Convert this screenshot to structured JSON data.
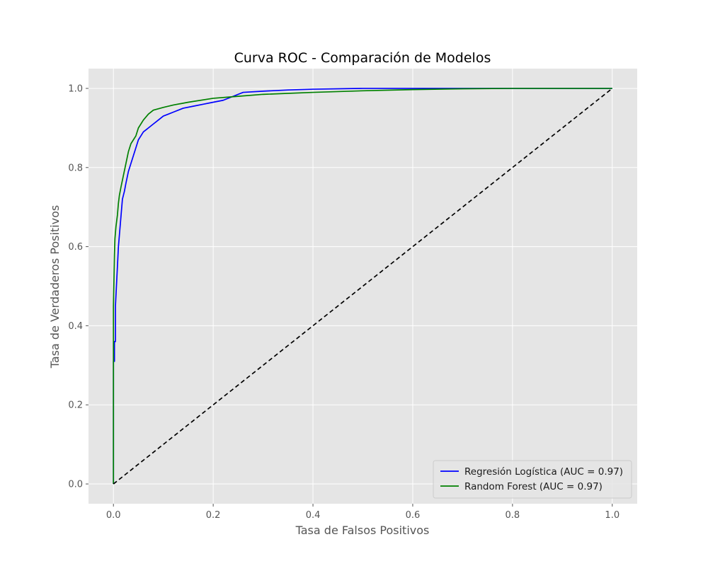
{
  "chart_data": {
    "type": "line",
    "title": "Curva ROC - Comparación de Modelos",
    "xlabel": "Tasa de Falsos Positivos",
    "ylabel": "Tasa de Verdaderos Positivos",
    "xlim": [
      -0.05,
      1.05
    ],
    "ylim": [
      -0.05,
      1.05
    ],
    "xticks": [
      0.0,
      0.2,
      0.4,
      0.6,
      0.8,
      1.0
    ],
    "xtick_labels": [
      "0.0",
      "0.2",
      "0.4",
      "0.6",
      "0.8",
      "1.0"
    ],
    "yticks": [
      0.0,
      0.2,
      0.4,
      0.6,
      0.8,
      1.0
    ],
    "ytick_labels": [
      "0.0",
      "0.2",
      "0.4",
      "0.6",
      "0.8",
      "1.0"
    ],
    "grid": true,
    "legend_position": "lower right",
    "colors": {
      "background": "#e5e5e5",
      "grid": "#ffffff",
      "text": "#555555"
    },
    "series": [
      {
        "name": "Regresión Logística (AUC = 0.97)",
        "color": "#0000ff",
        "x": [
          0.0,
          0.0,
          0.002,
          0.002,
          0.004,
          0.004,
          0.006,
          0.008,
          0.01,
          0.012,
          0.014,
          0.016,
          0.018,
          0.02,
          0.022,
          0.025,
          0.03,
          0.035,
          0.04,
          0.045,
          0.05,
          0.055,
          0.06,
          0.065,
          0.07,
          0.08,
          0.09,
          0.1,
          0.11,
          0.12,
          0.14,
          0.16,
          0.18,
          0.2,
          0.22,
          0.24,
          0.26,
          0.3,
          0.35,
          0.4,
          0.5,
          0.6,
          0.7,
          0.8,
          1.0
        ],
        "y": [
          0.0,
          0.31,
          0.31,
          0.36,
          0.36,
          0.45,
          0.5,
          0.55,
          0.6,
          0.63,
          0.66,
          0.69,
          0.72,
          0.73,
          0.74,
          0.76,
          0.79,
          0.81,
          0.83,
          0.85,
          0.87,
          0.88,
          0.89,
          0.895,
          0.9,
          0.91,
          0.92,
          0.93,
          0.935,
          0.94,
          0.95,
          0.955,
          0.96,
          0.965,
          0.97,
          0.98,
          0.99,
          0.993,
          0.996,
          0.998,
          1.0,
          1.0,
          1.0,
          1.0,
          1.0
        ]
      },
      {
        "name": "Random Forest (AUC = 0.97)",
        "color": "#008000",
        "x": [
          0.0,
          0.0,
          0.002,
          0.003,
          0.005,
          0.008,
          0.01,
          0.012,
          0.015,
          0.02,
          0.025,
          0.03,
          0.035,
          0.04,
          0.045,
          0.05,
          0.06,
          0.07,
          0.08,
          0.1,
          0.12,
          0.15,
          0.2,
          0.25,
          0.3,
          0.4,
          0.5,
          0.6,
          0.7,
          0.8,
          1.0
        ],
        "y": [
          0.0,
          0.45,
          0.58,
          0.62,
          0.65,
          0.68,
          0.71,
          0.73,
          0.75,
          0.78,
          0.81,
          0.84,
          0.86,
          0.87,
          0.88,
          0.9,
          0.92,
          0.935,
          0.945,
          0.952,
          0.958,
          0.965,
          0.975,
          0.98,
          0.985,
          0.99,
          0.994,
          0.997,
          0.999,
          1.0,
          1.0
        ]
      },
      {
        "name": "",
        "color": "#000000",
        "dashed": true,
        "x": [
          0.0,
          1.0
        ],
        "y": [
          0.0,
          1.0
        ]
      }
    ]
  }
}
